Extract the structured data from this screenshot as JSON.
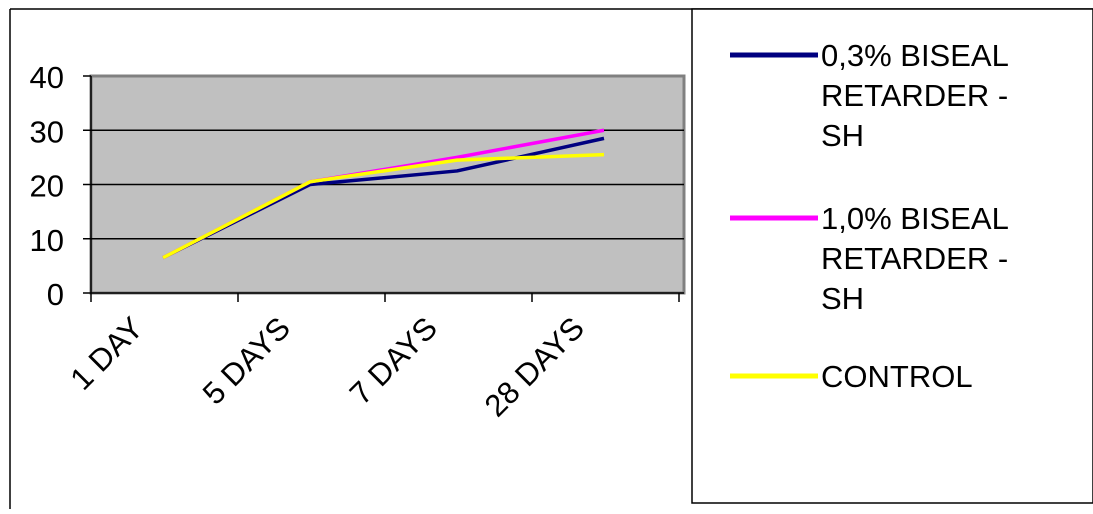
{
  "chart_data": {
    "type": "line",
    "categories": [
      "1 DAY",
      "5 DAYS",
      "7 DAYS",
      "28 DAYS"
    ],
    "series": [
      {
        "name": "0,3% BISEAL RETARDER - SH",
        "values": [
          6.5,
          20,
          22.5,
          28.5
        ],
        "color": "#000080"
      },
      {
        "name": "1,0% BISEAL RETARDER - SH",
        "values": [
          6.5,
          20.5,
          25,
          30
        ],
        "color": "#ff00ff"
      },
      {
        "name": "CONTROL",
        "values": [
          6.5,
          20.5,
          24.5,
          25.5
        ],
        "color": "#ffff00"
      }
    ],
    "legend_lines": [
      [
        "0,3% BISEAL",
        "RETARDER -",
        "SH"
      ],
      [
        "1,0% BISEAL",
        "RETARDER -",
        "SH"
      ],
      [
        "CONTROL"
      ]
    ],
    "yticks": [
      "0",
      "10",
      "20",
      "30",
      "40"
    ],
    "ylim": [
      0,
      40
    ],
    "grid": true,
    "legend_position": "right",
    "plot_background": "#c0c0c0"
  }
}
